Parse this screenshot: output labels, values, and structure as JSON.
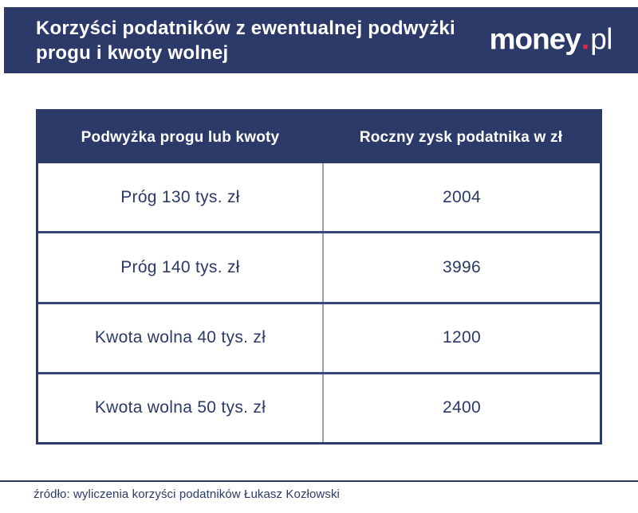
{
  "header": {
    "title_line1": "Korzyści podatników z ewentualnej podwyżki",
    "title_line2": "progu i kwoty wolnej",
    "logo": {
      "word": "money",
      "dot": ".",
      "tld": "pl"
    }
  },
  "table": {
    "columns": {
      "increase": "Podwyżka progu lub kwoty",
      "profit": "Roczny zysk podatnika w zł"
    },
    "rows": [
      {
        "label": "Próg 130 tys. zł",
        "value": "2004"
      },
      {
        "label": "Próg 140 tys. zł",
        "value": "3996"
      },
      {
        "label": "Kwota wolna 40 tys. zł",
        "value": "1200"
      },
      {
        "label": "Kwota wolna 50 tys. zł",
        "value": "2400"
      }
    ]
  },
  "footer": {
    "source": "źródło: wyliczenia korzyści podatników Łukasz Kozłowski"
  },
  "colors": {
    "navy": "#2c3a69",
    "logo_dot_pink": "#e0234f",
    "cell_text": "#2b3a66",
    "column_divider": "#9aa2b8",
    "row_divider": "#39477c"
  },
  "chart_data": {
    "type": "table",
    "title": "Korzyści podatników z ewentualnej podwyżki progu i kwoty wolnej",
    "columns": [
      "Podwyżka progu lub kwoty",
      "Roczny zysk podatnika w zł"
    ],
    "rows": [
      [
        "Próg 130 tys. zł",
        2004
      ],
      [
        "Próg 140 tys. zł",
        3996
      ],
      [
        "Kwota wolna 40 tys. zł",
        1200
      ],
      [
        "Kwota wolna 50 tys. zł",
        2400
      ]
    ],
    "source": "źródło: wyliczenia korzyści podatników Łukasz Kozłowski"
  }
}
